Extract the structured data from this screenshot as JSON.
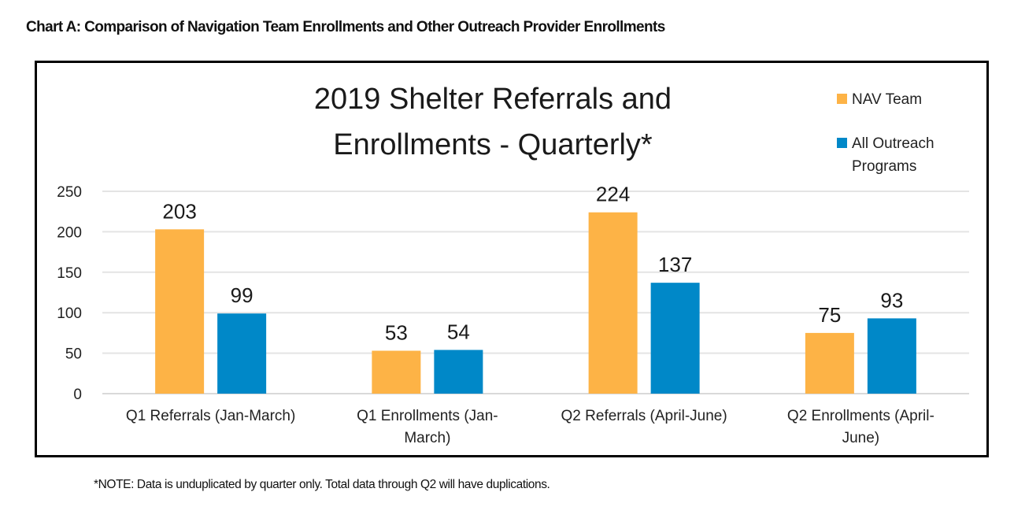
{
  "page": {
    "heading": "Chart A: Comparison of Navigation Team Enrollments and Other Outreach Provider Enrollments",
    "footnote": "*NOTE: Data is unduplicated by quarter only. Total data through Q2 will have duplications."
  },
  "chart_data": {
    "type": "bar",
    "title_lines": [
      "2019 Shelter Referrals and",
      "Enrollments - Quarterly*"
    ],
    "title": "2019 Shelter Referrals and Enrollments - Quarterly*",
    "xlabel": "",
    "ylabel": "",
    "ylim": [
      0,
      250
    ],
    "yticks": [
      0,
      50,
      100,
      150,
      200,
      250
    ],
    "grid": true,
    "legend_position": "top-right",
    "categories": [
      [
        "Q1 Referrals (Jan-March)"
      ],
      [
        "Q1 Enrollments (Jan-",
        "March)"
      ],
      [
        "Q2 Referrals (April-June)"
      ],
      [
        "Q2 Enrollments (April-",
        "June)"
      ]
    ],
    "series": [
      {
        "name": "NAV Team",
        "legend_lines": [
          "NAV Team"
        ],
        "color": "#FDB346",
        "values": [
          203,
          53,
          224,
          75
        ]
      },
      {
        "name": "All Outreach Programs",
        "legend_lines": [
          "All Outreach",
          "Programs"
        ],
        "color": "#0088C8",
        "values": [
          99,
          54,
          137,
          93
        ]
      }
    ],
    "data_labels": true
  }
}
